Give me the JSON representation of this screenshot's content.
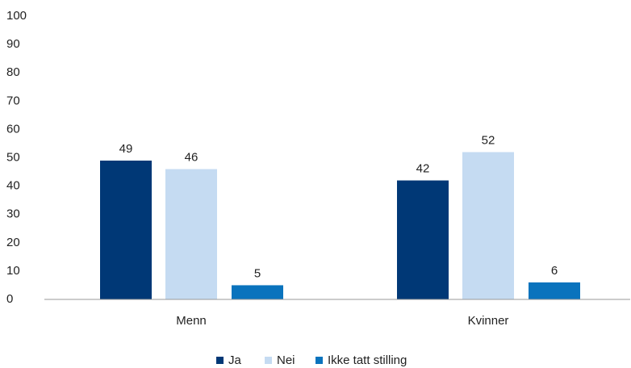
{
  "chart_data": {
    "type": "bar",
    "categories": [
      "Menn",
      "Kvinner"
    ],
    "series": [
      {
        "name": "Ja",
        "color": "#003876",
        "values": [
          49,
          42
        ]
      },
      {
        "name": "Nei",
        "color": "#c5dbf2",
        "values": [
          46,
          52
        ]
      },
      {
        "name": "Ikke tatt stilling",
        "color": "#0a73bd",
        "values": [
          5,
          6
        ]
      }
    ],
    "ylim": [
      0,
      100
    ],
    "yticks": [
      0,
      10,
      20,
      30,
      40,
      50,
      60,
      70,
      80,
      90,
      100
    ],
    "grid": false,
    "legend": "bottom"
  }
}
